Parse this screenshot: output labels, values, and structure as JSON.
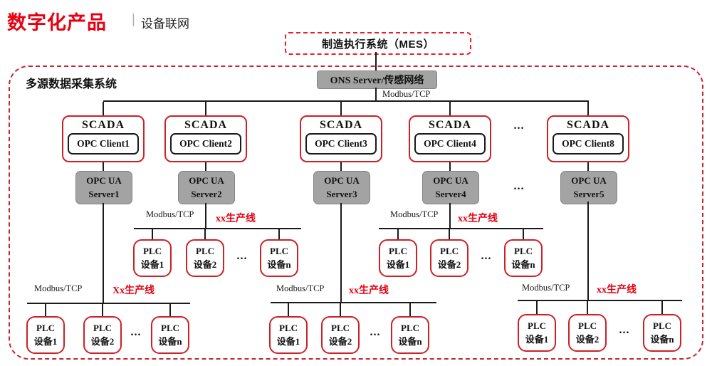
{
  "header": {
    "title": "数字化产品",
    "divider": "|",
    "subtitle": "设备联网"
  },
  "mes_label": "制造执行系统（MES）",
  "container_label": "多源数据采集系统",
  "ons_label": "ONS Server/传感网络",
  "backbone_protocol": "Modbus/TCP",
  "ellipsis": "...",
  "scada_nodes": [
    {
      "title": "SCADA",
      "client": "OPC Client1"
    },
    {
      "title": "SCADA",
      "client": "OPC Client2"
    },
    {
      "title": "SCADA",
      "client": "OPC Client3"
    },
    {
      "title": "SCADA",
      "client": "OPC Client4"
    },
    {
      "title": "SCADA",
      "client": "OPC Client8"
    }
  ],
  "opc_servers": [
    {
      "line1": "OPC UA",
      "line2": "Server1"
    },
    {
      "line1": "OPC UA",
      "line2": "Server2"
    },
    {
      "line1": "OPC UA",
      "line2": "Server3"
    },
    {
      "line1": "OPC UA",
      "line2": "Server4"
    },
    {
      "line1": "OPC UA",
      "line2": "Server5"
    }
  ],
  "plc_groups": [
    {
      "protocol": "Modbus/TCP",
      "line_name": "Xx生产线",
      "devices": [
        {
          "l1": "PLC",
          "l2": "设备1"
        },
        {
          "l1": "PLC",
          "l2": "设备2"
        },
        {
          "l1": "PLC",
          "l2": "设备n"
        }
      ]
    },
    {
      "protocol": "Modbus/TCP",
      "line_name": "xx生产线",
      "devices": [
        {
          "l1": "PLC",
          "l2": "设备1"
        },
        {
          "l1": "PLC",
          "l2": "设备2"
        },
        {
          "l1": "PLC",
          "l2": "设备n"
        }
      ]
    },
    {
      "protocol": "Modbus/TCP",
      "line_name": "xx生产线",
      "devices": [
        {
          "l1": "PLC",
          "l2": "设备1"
        },
        {
          "l1": "PLC",
          "l2": "设备2"
        },
        {
          "l1": "PLC",
          "l2": "设备n"
        }
      ]
    },
    {
      "protocol": "Modbus/TCP",
      "line_name": "xx生产线",
      "devices": [
        {
          "l1": "PLC",
          "l2": "设备1"
        },
        {
          "l1": "PLC",
          "l2": "设备2"
        },
        {
          "l1": "PLC",
          "l2": "设备n"
        }
      ]
    },
    {
      "protocol": "Modbus/TCP",
      "line_name": "xx生产线",
      "devices": [
        {
          "l1": "PLC",
          "l2": "设备1"
        },
        {
          "l1": "PLC",
          "l2": "设备2"
        },
        {
          "l1": "PLC",
          "l2": "设备n"
        }
      ]
    }
  ],
  "colors": {
    "accent_red": "#e60012",
    "node_border_red": "#cc2127",
    "container_dash_red": "#c22733",
    "mes_dash_red": "#e8202e",
    "gray_fill": "#a3a3a3",
    "line_black": "#1a1a1a"
  }
}
